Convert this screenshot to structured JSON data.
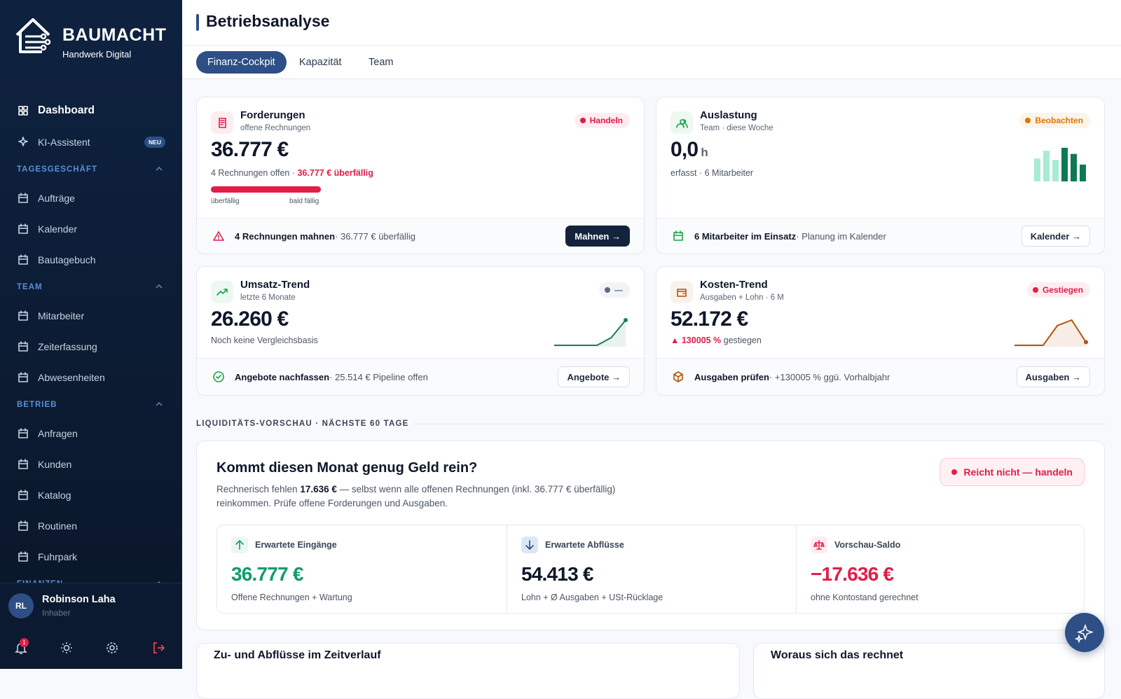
{
  "sidebar": {
    "brand": "BAUMACHT",
    "tagline": "Handwerk Digital",
    "nav": [
      {
        "label": "Dashboard"
      },
      {
        "label": "KI-Assistent",
        "badge": "NEU"
      },
      {
        "section": "TAGESGESCHÄFT"
      },
      {
        "label": "Aufträge"
      },
      {
        "label": "Kalender"
      },
      {
        "label": "Bautagebuch"
      },
      {
        "section": "TEAM"
      },
      {
        "label": "Mitarbeiter"
      },
      {
        "label": "Zeiterfassung"
      },
      {
        "label": "Abwesenheiten"
      },
      {
        "section": "BETRIEB"
      },
      {
        "label": "Anfragen"
      },
      {
        "label": "Kunden"
      },
      {
        "label": "Katalog"
      },
      {
        "label": "Routinen"
      },
      {
        "label": "Fuhrpark"
      },
      {
        "section": "FINANZEN"
      }
    ],
    "user": {
      "initials": "RL",
      "name": "Robinson Laha",
      "role": "Inhaber"
    },
    "notifications": 1
  },
  "header": {
    "title": "Betriebsanalyse",
    "tabs": [
      "Finanz-Cockpit",
      "Kapazität",
      "Team"
    ]
  },
  "kpis": [
    {
      "title": "Forderungen",
      "subtitle": "offene Rechnungen",
      "badge": "Handeln",
      "badge_color": "#e11d48",
      "accent": "#e11d48",
      "value": "36.777 €",
      "detail": [
        {
          "text": "4 Rechnungen offen · "
        },
        {
          "text": "36.777 € überfällig",
          "color": "#e11d48"
        }
      ],
      "bar_labels": [
        "überfällig",
        "bald fällig"
      ],
      "action": "4 Rechnungen mahnen",
      "action_note": " · 36.777 € überfällig",
      "button": "Mahnen →"
    },
    {
      "title": "Auslastung",
      "subtitle": "Team · diese Woche",
      "badge": "Beobachten",
      "badge_color": "#d97706",
      "accent": "#16a34a",
      "value": "0,0",
      "unit": "h",
      "detail": [
        {
          "text": "erfasst · 6 Mitarbeiter"
        }
      ],
      "chart": {
        "type": "bar",
        "values": [
          30,
          40,
          28,
          44,
          36,
          22
        ],
        "colors": [
          "#a7ecd0",
          "#a7ecd0",
          "#a7ecd0",
          "#0f7a52",
          "#0f7a52",
          "#0f7a52"
        ]
      },
      "action": "6 Mitarbeiter im Einsatz",
      "action_note": " · Planung im Kalender",
      "button": "Kalender →"
    },
    {
      "title": "Umsatz-Trend",
      "subtitle": "letzte 6 Monate",
      "badge": "—",
      "badge_color": "#5b6b86",
      "accent": "#16a34a",
      "value": "26.260 €",
      "detail": [
        {
          "text": "Noch keine Vergleichsbasis"
        }
      ],
      "chart": {
        "type": "line",
        "values": [
          0,
          0,
          0,
          0,
          8,
          26
        ],
        "color": "#1a7f5a"
      },
      "action": "Angebote nachfassen",
      "action_note": " · 25.514 € Pipeline offen",
      "button": "Angebote →"
    },
    {
      "title": "Kosten-Trend",
      "subtitle": "Ausgaben + Lohn · 6 M",
      "badge": "Gestiegen",
      "badge_color": "#e11d48",
      "accent": "#b45309",
      "value": "52.172 €",
      "detail": [
        {
          "text": "▲ 130005 %",
          "color": "#e11d48"
        },
        {
          "text": " gestiegen"
        }
      ],
      "chart": {
        "type": "line",
        "values": [
          0,
          0,
          0,
          25,
          32,
          4
        ],
        "color": "#b4530d"
      },
      "action": "Ausgaben prüfen",
      "action_note": " · +130005 % ggü. Vorhalbjahr",
      "button": "Ausgaben →"
    }
  ],
  "liquidity": {
    "section": "LIQUIDITÄTS-VORSCHAU · NÄCHSTE 60 TAGE",
    "title": "Kommt diesen Monat genug Geld rein?",
    "badge": "Reicht nicht — handeln",
    "text_before": "Rechnerisch fehlen ",
    "text_strong": "17.636 €",
    "text_after": " — selbst wenn alle offenen Rechnungen (inkl. 36.777 € überfällig) reinkommen. Prüfe offene Forderungen und Ausgaben.",
    "stats": [
      {
        "label": "Erwartete Eingänge",
        "value": "36.777 €",
        "note": "Offene Rechnungen + Wartung",
        "color": "#0f9d6b"
      },
      {
        "label": "Erwartete Abflüsse",
        "value": "54.413 €",
        "note": "Lohn + Ø Ausgaben + USt-Rücklage",
        "color": "#0f172a"
      },
      {
        "label": "Vorschau-Saldo",
        "value": "−17.636 €",
        "note": "ohne Kontostand gerechnet",
        "color": "#e11d48"
      }
    ]
  },
  "bottom_cards": [
    "Zu- und Abflüsse im Zeitverlauf",
    "Woraus sich das rechnet"
  ]
}
